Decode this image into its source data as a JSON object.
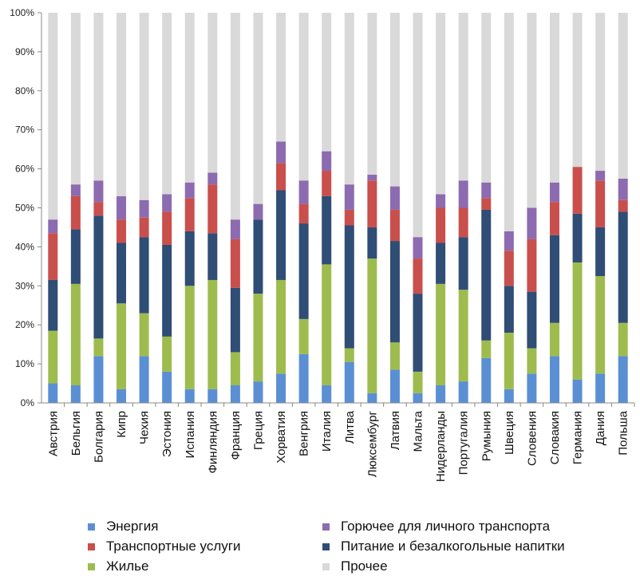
{
  "chart_data": {
    "type": "bar",
    "stacked": true,
    "percent": true,
    "categories": [
      "Австрия",
      "Бельгия",
      "Болгария",
      "Кипр",
      "Чехия",
      "Эстония",
      "Испания",
      "Финляндия",
      "Франция",
      "Греция",
      "Хорватия",
      "Венгрия",
      "Италия",
      "Литва",
      "Люксембург",
      "Латвия",
      "Мальта",
      "Нидерланды",
      "Португалия",
      "Румыния",
      "Швеция",
      "Словения",
      "Словакия",
      "Германия",
      "Дания",
      "Польша"
    ],
    "series": [
      {
        "name": "Энергия",
        "color": "#5b8fd4",
        "values": [
          5,
          4.5,
          12,
          3.5,
          12,
          8,
          3.5,
          3.5,
          4.5,
          5.5,
          7.5,
          12.5,
          4.5,
          10.5,
          2.5,
          8.5,
          2.5,
          4.5,
          5.5,
          11.5,
          3.5,
          7.5,
          12,
          6,
          7.5,
          12
        ]
      },
      {
        "name": "Жилье",
        "color": "#9ebc4e",
        "values": [
          13.5,
          26,
          4.5,
          22,
          11,
          9,
          26.5,
          28,
          8.5,
          22.5,
          24,
          9,
          31,
          3.5,
          34.5,
          7,
          5.5,
          26,
          23.5,
          4.5,
          14.5,
          6.5,
          8.5,
          30,
          25,
          8.5
        ]
      },
      {
        "name": "Питание и безалкогольные напитки",
        "color": "#2f4d75",
        "values": [
          13,
          14,
          31.5,
          15.5,
          19.5,
          23.5,
          14,
          12,
          16.5,
          19,
          23,
          24.5,
          17.5,
          31.5,
          8,
          26,
          20,
          10.5,
          13.5,
          33.5,
          12,
          14.5,
          22.5,
          12.5,
          12.5,
          28.5
        ]
      },
      {
        "name": "Транспортные услуги",
        "color": "#c94f4c",
        "values": [
          12,
          8.5,
          3.5,
          6,
          5,
          8.5,
          8.5,
          12.5,
          12.5,
          0,
          7,
          5,
          6.5,
          4,
          12,
          8,
          9,
          9,
          7.5,
          3,
          9,
          13.5,
          8.5,
          12,
          12,
          3
        ]
      },
      {
        "name": "Горючее для личного транспорта",
        "color": "#8d6bb0",
        "values": [
          3.5,
          3,
          5.5,
          6,
          4.5,
          4.5,
          4,
          3,
          5,
          4,
          5.5,
          6,
          5,
          6.5,
          1.5,
          6,
          5.5,
          3.5,
          7,
          4,
          5,
          8,
          5,
          0,
          2.5,
          5.5
        ]
      },
      {
        "name": "Прочее",
        "color": "#d9d9d9",
        "values": [
          53,
          44,
          43,
          47,
          48,
          46.5,
          43.5,
          41,
          53,
          49,
          33,
          43,
          35.5,
          44,
          41.5,
          44.5,
          57.5,
          46.5,
          43,
          43.5,
          56,
          50,
          43.5,
          39.5,
          40.5,
          42.5
        ]
      }
    ],
    "yticks": [
      "0%",
      "10%",
      "20%",
      "30%",
      "40%",
      "50%",
      "60%",
      "70%",
      "80%",
      "90%",
      "100%"
    ],
    "ylim": [
      0,
      100
    ],
    "grid": false,
    "legend_position": "bottom"
  }
}
